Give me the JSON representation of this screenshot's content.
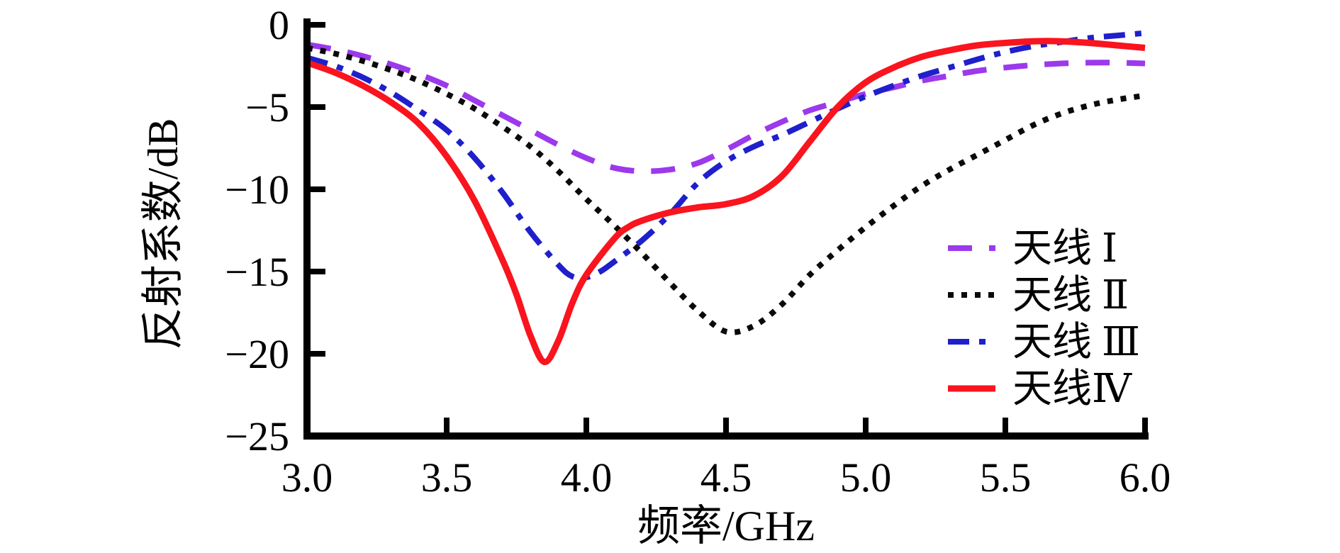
{
  "page": {
    "background": "#ffffff"
  },
  "chart_data": {
    "type": "line",
    "title": "",
    "xlabel": "频率/GHz",
    "ylabel": "反射系数/dB",
    "xlim": [
      3.0,
      6.0
    ],
    "ylim": [
      -25,
      0
    ],
    "grid": false,
    "legend_position": "right-center-inside",
    "axis_color": "#000000",
    "x_ticks": {
      "values": [
        3.0,
        3.5,
        4.0,
        4.5,
        5.0,
        5.5,
        6.0
      ],
      "labels": [
        "3.0",
        "3.5",
        "4.0",
        "4.5",
        "5.0",
        "5.5",
        "6.0"
      ]
    },
    "y_ticks": {
      "values": [
        0,
        -5,
        -10,
        -15,
        -20,
        -25
      ],
      "labels": [
        "0",
        "−5",
        "−10",
        "−15",
        "−20",
        "−25"
      ]
    },
    "series": [
      {
        "name": "天线 Ⅰ",
        "color": "#9C39EC",
        "line_style": "dashed",
        "x": [
          3.0,
          3.1,
          3.2,
          3.3,
          3.4,
          3.5,
          3.6,
          3.7,
          3.8,
          3.9,
          4.0,
          4.1,
          4.2,
          4.3,
          4.4,
          4.5,
          4.6,
          4.7,
          4.8,
          4.9,
          5.0,
          5.1,
          5.2,
          5.3,
          5.4,
          5.5,
          5.6,
          5.7,
          5.8,
          5.9,
          6.0
        ],
        "y": [
          -1.2,
          -1.5,
          -1.9,
          -2.4,
          -3.0,
          -3.7,
          -4.6,
          -5.5,
          -6.4,
          -7.3,
          -8.1,
          -8.7,
          -8.9,
          -8.8,
          -8.4,
          -7.6,
          -6.7,
          -5.9,
          -5.2,
          -4.7,
          -4.2,
          -3.8,
          -3.4,
          -3.1,
          -2.8,
          -2.6,
          -2.45,
          -2.35,
          -2.3,
          -2.3,
          -2.35
        ]
      },
      {
        "name": "天线 Ⅱ",
        "color": "#0a0a0a",
        "line_style": "dotted",
        "x": [
          3.0,
          3.1,
          3.2,
          3.3,
          3.4,
          3.5,
          3.6,
          3.7,
          3.8,
          3.9,
          4.0,
          4.1,
          4.2,
          4.3,
          4.4,
          4.5,
          4.6,
          4.7,
          4.8,
          4.9,
          5.0,
          5.1,
          5.2,
          5.3,
          5.4,
          5.5,
          5.6,
          5.7,
          5.8,
          5.9,
          6.0
        ],
        "y": [
          -1.4,
          -1.75,
          -2.2,
          -2.75,
          -3.4,
          -4.2,
          -5.1,
          -6.2,
          -7.4,
          -8.9,
          -10.6,
          -12.2,
          -13.9,
          -15.7,
          -17.4,
          -18.65,
          -18.3,
          -17.0,
          -15.2,
          -13.7,
          -12.3,
          -11.0,
          -9.8,
          -8.8,
          -7.9,
          -7.0,
          -6.1,
          -5.4,
          -4.9,
          -4.55,
          -4.3
        ]
      },
      {
        "name": "天线 Ⅲ",
        "color": "#1F1FCB",
        "line_style": "dashdot",
        "x": [
          3.0,
          3.1,
          3.2,
          3.3,
          3.4,
          3.5,
          3.6,
          3.7,
          3.8,
          3.9,
          3.95,
          4.0,
          4.05,
          4.1,
          4.2,
          4.3,
          4.4,
          4.5,
          4.6,
          4.7,
          4.8,
          4.9,
          5.0,
          5.1,
          5.2,
          5.3,
          5.4,
          5.5,
          5.6,
          5.7,
          5.8,
          5.9,
          6.0
        ],
        "y": [
          -2.0,
          -2.5,
          -3.2,
          -4.1,
          -5.2,
          -6.4,
          -8.1,
          -10.2,
          -12.6,
          -14.6,
          -15.3,
          -15.35,
          -15.0,
          -14.4,
          -13.1,
          -11.5,
          -9.6,
          -8.3,
          -7.4,
          -6.7,
          -5.9,
          -5.1,
          -4.35,
          -3.7,
          -3.1,
          -2.6,
          -2.1,
          -1.65,
          -1.3,
          -1.05,
          -0.8,
          -0.65,
          -0.5
        ]
      },
      {
        "name": "天线Ⅳ",
        "color": "#F9141E",
        "line_style": "solid",
        "x": [
          3.0,
          3.1,
          3.2,
          3.3,
          3.4,
          3.5,
          3.6,
          3.7,
          3.75,
          3.8,
          3.85,
          3.9,
          3.95,
          4.0,
          4.1,
          4.15,
          4.2,
          4.3,
          4.4,
          4.5,
          4.6,
          4.7,
          4.8,
          4.9,
          5.0,
          5.1,
          5.2,
          5.3,
          5.4,
          5.5,
          5.6,
          5.7,
          5.8,
          5.9,
          6.0
        ],
        "y": [
          -2.3,
          -2.9,
          -3.7,
          -4.7,
          -6.0,
          -8.0,
          -10.7,
          -14.3,
          -16.4,
          -18.9,
          -20.5,
          -19.2,
          -16.9,
          -15.2,
          -13.0,
          -12.3,
          -11.9,
          -11.4,
          -11.1,
          -10.9,
          -10.4,
          -9.2,
          -7.1,
          -5.0,
          -3.5,
          -2.6,
          -1.95,
          -1.55,
          -1.25,
          -1.1,
          -1.0,
          -1.0,
          -1.1,
          -1.25,
          -1.4
        ]
      }
    ]
  }
}
